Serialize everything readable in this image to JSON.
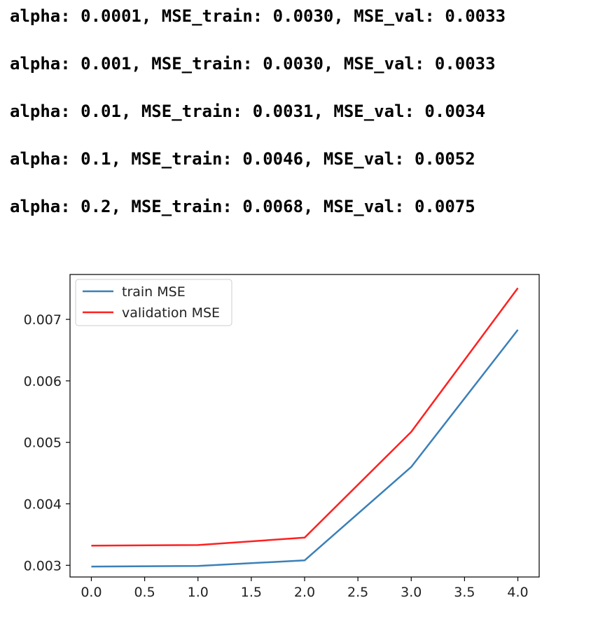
{
  "output_lines": [
    "alpha: 0.0001, MSE_train: 0.0030, MSE_val: 0.0033",
    "alpha: 0.001, MSE_train: 0.0030, MSE_val: 0.0033",
    "alpha: 0.01, MSE_train: 0.0031, MSE_val: 0.0034",
    "alpha: 0.1, MSE_train: 0.0046, MSE_val: 0.0052",
    "alpha: 0.2, MSE_train: 0.0068, MSE_val: 0.0075"
  ],
  "chart_data": {
    "type": "line",
    "x": [
      0,
      1,
      2,
      3,
      4
    ],
    "series": [
      {
        "name": "train MSE",
        "color": "#3b80b8",
        "values": [
          0.00298,
          0.00299,
          0.00308,
          0.0046,
          0.00683
        ]
      },
      {
        "name": "validation MSE",
        "color": "#ff2020",
        "values": [
          0.00332,
          0.00333,
          0.00345,
          0.00517,
          0.00751
        ]
      }
    ],
    "x_ticks": [
      "0.0",
      "0.5",
      "1.0",
      "1.5",
      "2.0",
      "2.5",
      "3.0",
      "3.5",
      "4.0"
    ],
    "x_tick_values": [
      0,
      0.5,
      1,
      1.5,
      2,
      2.5,
      3,
      3.5,
      4
    ],
    "y_ticks": [
      "0.003",
      "0.004",
      "0.005",
      "0.006",
      "0.007"
    ],
    "y_tick_values": [
      0.003,
      0.004,
      0.005,
      0.006,
      0.007
    ],
    "xlim": [
      -0.2,
      4.2
    ],
    "ylim": [
      0.00281,
      0.00773
    ],
    "grid": false,
    "legend": "top-left",
    "title": "",
    "xlabel": "",
    "ylabel": ""
  }
}
